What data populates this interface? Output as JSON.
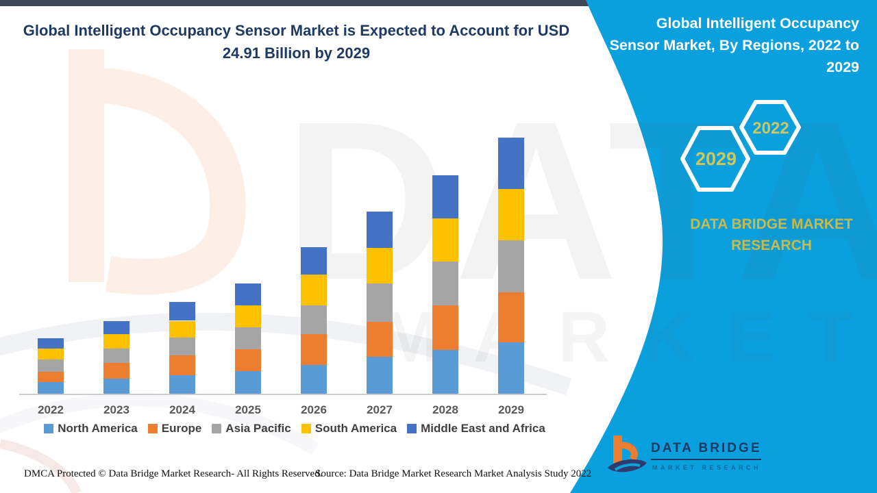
{
  "header": {
    "title": "Global Intelligent Occupancy Sensor Market is Expected to Account for USD 24.91 Billion by 2029"
  },
  "banner": {
    "title": "Global Intelligent Occupancy Sensor Market, By Regions, 2022 to 2029",
    "hexagon_large_label": "2029",
    "hexagon_small_label": "2022",
    "brand_text": "DATA BRIDGE MARKET RESEARCH",
    "teal_color": "#0aa0dd",
    "gold_color": "#c9ba4a"
  },
  "chart_data": {
    "type": "bar",
    "stacked": true,
    "title": "Global Intelligent Occupancy Sensor Market, By Regions, 2022 to 2029",
    "unit": "USD Billion",
    "xlabel": "",
    "ylabel": "",
    "grid": false,
    "legend_position": "bottom",
    "categories": [
      "2022",
      "2023",
      "2024",
      "2025",
      "2026",
      "2027",
      "2028",
      "2029"
    ],
    "series": [
      {
        "name": "North America",
        "color": "#5B9BD5",
        "values": [
          1.11,
          1.48,
          1.78,
          2.22,
          2.81,
          3.61,
          4.28,
          4.99
        ]
      },
      {
        "name": "Europe",
        "color": "#ED7D31",
        "values": [
          1.0,
          1.51,
          1.95,
          2.11,
          2.99,
          3.37,
          4.33,
          4.88
        ]
      },
      {
        "name": "Asia Pacific",
        "color": "#A5A5A5",
        "values": [
          1.22,
          1.38,
          1.71,
          2.15,
          2.8,
          3.75,
          4.26,
          5.06
        ]
      },
      {
        "name": "South America",
        "color": "#FFC000",
        "values": [
          1.04,
          1.4,
          1.66,
          2.13,
          2.97,
          3.48,
          4.21,
          4.99
        ]
      },
      {
        "name": "Middle East and Africa",
        "color": "#4472C4",
        "values": [
          1.06,
          1.33,
          1.84,
          2.11,
          2.73,
          3.55,
          4.22,
          4.99
        ]
      }
    ],
    "totals": [
      5.43,
      7.1,
      8.94,
      10.72,
      14.3,
      17.76,
      21.3,
      24.91
    ],
    "highlight_total_2029": "24.91"
  },
  "watermark": {
    "line1": "DATA BRIDGE",
    "line2": "MARKET RESEARCH"
  },
  "footer": {
    "left": "DMCA Protected © Data Bridge Market Research- All Rights Reserved.",
    "right": "Source: Data Bridge Market Research Market Analysis Study 2022"
  },
  "logo": {
    "wordmark": "DATA BRIDGE",
    "subtitle": "MARKET RESEARCH"
  }
}
